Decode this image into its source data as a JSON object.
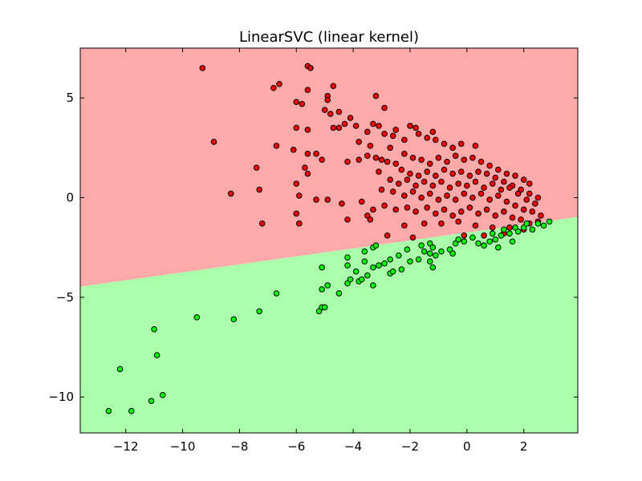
{
  "chart_data": {
    "type": "scatter",
    "title": "LinearSVC (linear kernel)",
    "xlabel": "",
    "ylabel": "",
    "xlim": [
      -13.6,
      3.9
    ],
    "ylim": [
      -11.8,
      7.5
    ],
    "x_ticks": [
      {
        "value": -12,
        "label": "−12"
      },
      {
        "value": -10,
        "label": "−10"
      },
      {
        "value": -8,
        "label": "−8"
      },
      {
        "value": -6,
        "label": "−6"
      },
      {
        "value": -4,
        "label": "−4"
      },
      {
        "value": -2,
        "label": "−2"
      },
      {
        "value": 0,
        "label": "0"
      },
      {
        "value": 2,
        "label": "2"
      }
    ],
    "y_ticks": [
      {
        "value": 5,
        "label": "5"
      },
      {
        "value": 0,
        "label": "0"
      },
      {
        "value": -5,
        "label": "−5"
      },
      {
        "value": -10,
        "label": "−10"
      }
    ],
    "grid": false,
    "legend": "none",
    "decision_boundary": {
      "slope": 0.2,
      "intercept": -1.75
    },
    "regions": {
      "upper_color": "#ffaaaa",
      "lower_color": "#aaffaa"
    },
    "series": [
      {
        "color": "#ff0000",
        "points": [
          [
            -9.3,
            6.5
          ],
          [
            -5.6,
            6.6
          ],
          [
            -5.5,
            6.5
          ],
          [
            -6.6,
            5.7
          ],
          [
            -4.7,
            5.6
          ],
          [
            -6.8,
            5.5
          ],
          [
            -5.6,
            5.4
          ],
          [
            -3.2,
            5.1
          ],
          [
            -4.9,
            5.1
          ],
          [
            -6.0,
            4.8
          ],
          [
            -4.9,
            4.9
          ],
          [
            -5.8,
            4.7
          ],
          [
            -2.9,
            4.5
          ],
          [
            -5.0,
            4.4
          ],
          [
            -4.8,
            4.2
          ],
          [
            -4.5,
            4.3
          ],
          [
            -4.1,
            4.0
          ],
          [
            -3.9,
            3.6
          ],
          [
            -4.3,
            3.7
          ],
          [
            -3.3,
            3.7
          ],
          [
            -3.1,
            3.6
          ],
          [
            -2.5,
            3.4
          ],
          [
            -2.0,
            3.6
          ],
          [
            -1.8,
            3.5
          ],
          [
            -1.2,
            3.3
          ],
          [
            -4.7,
            3.5
          ],
          [
            -4.5,
            3.5
          ],
          [
            -5.6,
            3.4
          ],
          [
            -6.0,
            3.5
          ],
          [
            -8.9,
            2.8
          ],
          [
            -3.5,
            3.3
          ],
          [
            -2.9,
            3.2
          ],
          [
            -2.6,
            3.1
          ],
          [
            -2.2,
            2.9
          ],
          [
            -1.7,
            3.2
          ],
          [
            -1.4,
            3.0
          ],
          [
            -1.1,
            2.9
          ],
          [
            -0.8,
            2.7
          ],
          [
            -0.5,
            2.5
          ],
          [
            -0.2,
            2.7
          ],
          [
            0.3,
            2.6
          ],
          [
            -2.7,
            2.5
          ],
          [
            -3.4,
            2.6
          ],
          [
            -3.8,
            2.8
          ],
          [
            -6.7,
            2.6
          ],
          [
            -6.1,
            2.4
          ],
          [
            -5.3,
            2.2
          ],
          [
            -5.6,
            2.2
          ],
          [
            -5.1,
            1.9
          ],
          [
            -4.2,
            1.8
          ],
          [
            -3.8,
            1.9
          ],
          [
            -3.5,
            2.1
          ],
          [
            -3.2,
            2.0
          ],
          [
            -3.0,
            1.9
          ],
          [
            -2.8,
            1.8
          ],
          [
            -2.5,
            1.7
          ],
          [
            -2.2,
            2.2
          ],
          [
            -1.9,
            2.0
          ],
          [
            -1.6,
            1.9
          ],
          [
            -1.3,
            1.7
          ],
          [
            -1.0,
            2.0
          ],
          [
            -0.7,
            1.8
          ],
          [
            -0.4,
            2.1
          ],
          [
            -0.1,
            1.9
          ],
          [
            0.2,
            2.0
          ],
          [
            0.5,
            1.8
          ],
          [
            0.8,
            1.6
          ],
          [
            1.1,
            1.4
          ],
          [
            1.4,
            1.2
          ],
          [
            1.7,
            1.1
          ],
          [
            2.0,
            0.9
          ],
          [
            2.2,
            0.7
          ],
          [
            -7.4,
            1.5
          ],
          [
            -5.7,
            1.5
          ],
          [
            -5.6,
            1.2
          ],
          [
            -3.1,
            1.3
          ],
          [
            -2.3,
            1.4
          ],
          [
            -2.0,
            1.2
          ],
          [
            -1.7,
            1.1
          ],
          [
            -1.4,
            1.3
          ],
          [
            -1.1,
            1.1
          ],
          [
            -0.8,
            1.4
          ],
          [
            -0.5,
            1.2
          ],
          [
            -0.2,
            1.3
          ],
          [
            0.1,
            1.1
          ],
          [
            0.4,
            1.3
          ],
          [
            0.7,
            1.2
          ],
          [
            1.0,
            1.0
          ],
          [
            1.3,
            0.8
          ],
          [
            1.6,
            0.6
          ],
          [
            1.9,
            0.4
          ],
          [
            2.2,
            0.2
          ],
          [
            2.5,
            0.0
          ],
          [
            -2.7,
            0.9
          ],
          [
            -2.4,
            0.7
          ],
          [
            -2.1,
            0.9
          ],
          [
            -1.8,
            0.6
          ],
          [
            -1.5,
            0.8
          ],
          [
            -1.2,
            0.6
          ],
          [
            -0.9,
            0.8
          ],
          [
            -0.6,
            0.5
          ],
          [
            -0.3,
            0.7
          ],
          [
            0.0,
            0.6
          ],
          [
            0.3,
            0.8
          ],
          [
            0.6,
            0.5
          ],
          [
            0.9,
            0.7
          ],
          [
            1.2,
            0.4
          ],
          [
            1.5,
            0.5
          ],
          [
            1.8,
            0.2
          ],
          [
            2.1,
            -0.1
          ],
          [
            2.4,
            -0.3
          ],
          [
            -6.0,
            0.7
          ],
          [
            -7.3,
            0.4
          ],
          [
            -8.3,
            0.2
          ],
          [
            -3.0,
            0.4
          ],
          [
            -2.6,
            0.3
          ],
          [
            -2.2,
            0.1
          ],
          [
            -1.9,
            0.3
          ],
          [
            -1.6,
            0.0
          ],
          [
            -1.3,
            0.2
          ],
          [
            -1.0,
            -0.1
          ],
          [
            -0.7,
            0.1
          ],
          [
            -0.4,
            -0.1
          ],
          [
            -0.1,
            0.2
          ],
          [
            0.2,
            0.0
          ],
          [
            0.5,
            0.2
          ],
          [
            0.8,
            -0.1
          ],
          [
            1.1,
            0.1
          ],
          [
            1.4,
            -0.2
          ],
          [
            1.7,
            -0.4
          ],
          [
            2.0,
            -0.6
          ],
          [
            2.3,
            -0.7
          ],
          [
            2.6,
            -0.9
          ],
          [
            -5.9,
            0.1
          ],
          [
            -5.3,
            -0.1
          ],
          [
            -4.9,
            -0.1
          ],
          [
            -4.4,
            -0.3
          ],
          [
            -3.7,
            -0.2
          ],
          [
            -3.3,
            -0.6
          ],
          [
            -2.9,
            -0.4
          ],
          [
            -2.5,
            -0.6
          ],
          [
            -2.1,
            -0.5
          ],
          [
            -1.8,
            -0.7
          ],
          [
            -1.4,
            -0.5
          ],
          [
            -1.1,
            -0.8
          ],
          [
            -0.8,
            -0.6
          ],
          [
            -0.5,
            -0.9
          ],
          [
            -0.2,
            -0.7
          ],
          [
            0.1,
            -0.5
          ],
          [
            0.4,
            -0.8
          ],
          [
            0.7,
            -0.6
          ],
          [
            1.0,
            -0.9
          ],
          [
            1.3,
            -0.7
          ],
          [
            1.6,
            -1.0
          ],
          [
            1.9,
            -1.1
          ],
          [
            2.2,
            -1.3
          ],
          [
            2.5,
            -1.2
          ],
          [
            -6.0,
            -0.8
          ],
          [
            -5.9,
            -1.3
          ],
          [
            -7.2,
            -1.3
          ],
          [
            -4.2,
            -1.1
          ],
          [
            -3.5,
            -0.9
          ],
          [
            -3.4,
            -1.1
          ],
          [
            -2.2,
            -1.4
          ],
          [
            -1.5,
            -1.3
          ],
          [
            -0.9,
            -1.3
          ],
          [
            -0.3,
            -1.2
          ],
          [
            0.3,
            -1.4
          ],
          [
            0.9,
            -1.5
          ],
          [
            1.5,
            -1.5
          ],
          [
            2.0,
            -1.6
          ],
          [
            -2.8,
            -1.9
          ],
          [
            -1.9,
            -2.0
          ],
          [
            -0.1,
            -1.9
          ],
          [
            0.6,
            -1.9
          ],
          [
            1.3,
            -1.8
          ]
        ]
      },
      {
        "color": "#00ff00",
        "points": [
          [
            -12.6,
            -10.7
          ],
          [
            -11.8,
            -10.7
          ],
          [
            -11.1,
            -10.2
          ],
          [
            -10.7,
            -9.9
          ],
          [
            -12.2,
            -8.6
          ],
          [
            -10.9,
            -7.9
          ],
          [
            -11.0,
            -6.6
          ],
          [
            -9.5,
            -6.0
          ],
          [
            -8.2,
            -6.1
          ],
          [
            -7.3,
            -5.7
          ],
          [
            -6.7,
            -4.8
          ],
          [
            -5.2,
            -5.7
          ],
          [
            -5.1,
            -5.5
          ],
          [
            -5.0,
            -5.5
          ],
          [
            -4.5,
            -4.8
          ],
          [
            -5.1,
            -4.6
          ],
          [
            -4.9,
            -4.4
          ],
          [
            -4.2,
            -4.3
          ],
          [
            -4.1,
            -4.1
          ],
          [
            -3.8,
            -4.2
          ],
          [
            -3.7,
            -4.1
          ],
          [
            -3.3,
            -4.4
          ],
          [
            -3.5,
            -3.9
          ],
          [
            -3.9,
            -3.7
          ],
          [
            -4.2,
            -3.4
          ],
          [
            -5.1,
            -3.5
          ],
          [
            -3.3,
            -3.5
          ],
          [
            -2.7,
            -3.8
          ],
          [
            -2.6,
            -3.7
          ],
          [
            -2.3,
            -3.6
          ],
          [
            -3.1,
            -3.4
          ],
          [
            -2.9,
            -3.3
          ],
          [
            -2.7,
            -3.1
          ],
          [
            -3.6,
            -3.2
          ],
          [
            -2.4,
            -2.9
          ],
          [
            -2.0,
            -3.2
          ],
          [
            -1.7,
            -3.1
          ],
          [
            -1.3,
            -3.2
          ],
          [
            -1.2,
            -3.5
          ],
          [
            -1.5,
            -2.7
          ],
          [
            -1.3,
            -2.8
          ],
          [
            -1.1,
            -2.9
          ],
          [
            -4.2,
            -3.0
          ],
          [
            -3.6,
            -2.7
          ],
          [
            -3.3,
            -2.5
          ],
          [
            -3.2,
            -2.4
          ],
          [
            -2.1,
            -2.6
          ],
          [
            -1.6,
            -2.4
          ],
          [
            -1.3,
            -2.3
          ],
          [
            -1.2,
            -2.5
          ],
          [
            -0.9,
            -2.7
          ],
          [
            -0.5,
            -2.8
          ],
          [
            -0.6,
            -2.6
          ],
          [
            -0.4,
            -2.3
          ],
          [
            -0.3,
            -2.1
          ],
          [
            -0.1,
            -2.2
          ],
          [
            0.2,
            -2.0
          ],
          [
            0.4,
            -2.3
          ],
          [
            0.6,
            -2.4
          ],
          [
            0.8,
            -2.2
          ],
          [
            1.1,
            -2.5
          ],
          [
            1.0,
            -2.1
          ],
          [
            1.2,
            -1.9
          ],
          [
            1.6,
            -2.2
          ],
          [
            1.5,
            -1.8
          ],
          [
            1.8,
            -1.7
          ],
          [
            2.0,
            -1.5
          ],
          [
            2.3,
            -1.6
          ],
          [
            2.5,
            -1.3
          ],
          [
            2.7,
            -1.4
          ],
          [
            2.9,
            -1.2
          ],
          [
            1.7,
            -1.5
          ],
          [
            1.3,
            -1.6
          ],
          [
            0.9,
            -1.8
          ],
          [
            2.1,
            -1.3
          ]
        ]
      }
    ]
  }
}
